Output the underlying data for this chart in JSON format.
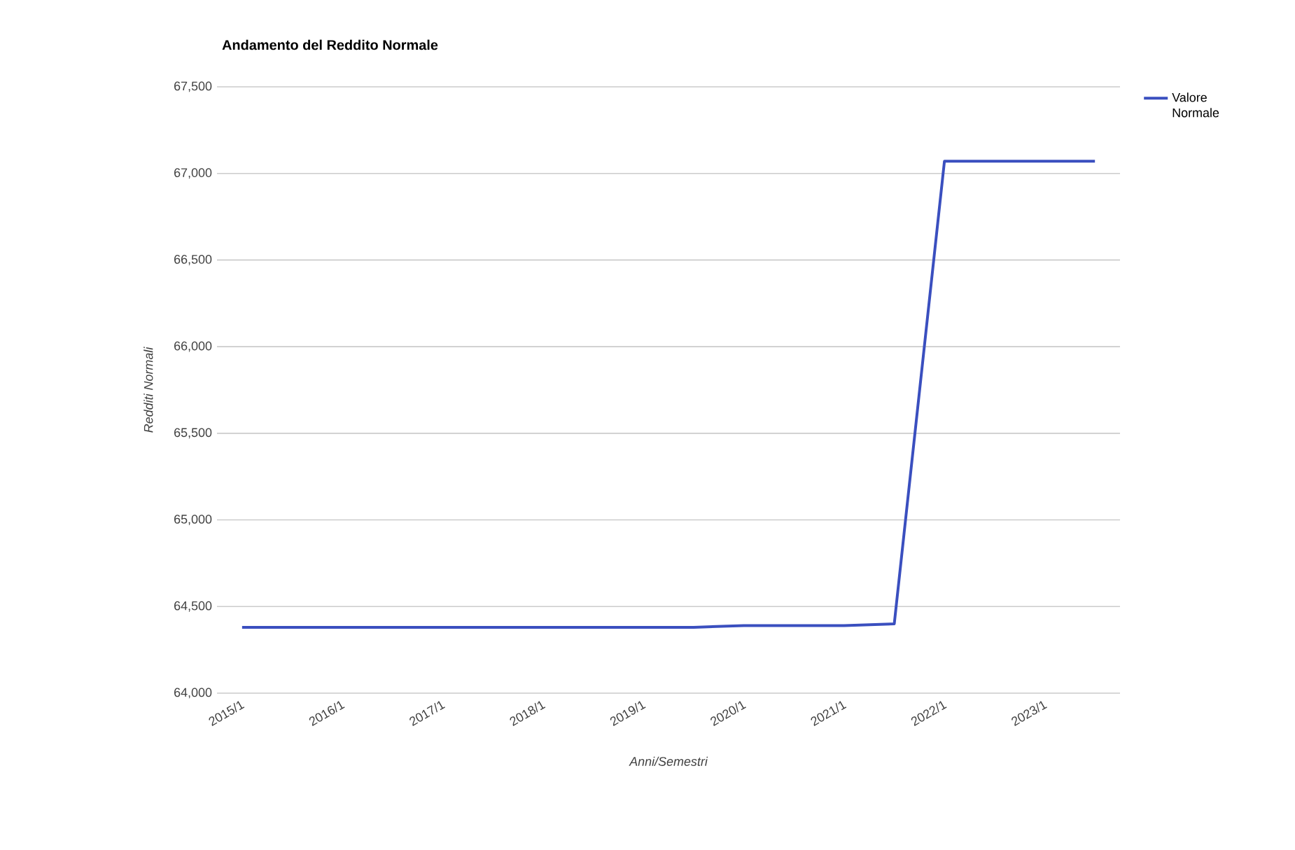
{
  "chart_data": {
    "type": "line",
    "title": "Andamento del Reddito Normale",
    "xlabel": "Anni/Semestri",
    "ylabel": "Redditi Normali",
    "categories": [
      "2015/1",
      null,
      "2016/1",
      null,
      "2017/1",
      null,
      "2018/1",
      null,
      "2019/1",
      null,
      "2020/1",
      null,
      "2021/1",
      null,
      "2022/1",
      null,
      "2023/1",
      null
    ],
    "series": [
      {
        "name": "Valore Normale",
        "color": "#3a4fbf",
        "values": [
          64380,
          64380,
          64380,
          64380,
          64380,
          64380,
          64380,
          64380,
          64380,
          64380,
          64390,
          64390,
          64390,
          64400,
          67070,
          67070,
          67070,
          67070
        ]
      }
    ],
    "ylim": [
      64000,
      67500
    ],
    "yticks": [
      {
        "value": 64000,
        "label": "64,000"
      },
      {
        "value": 64500,
        "label": "64,500"
      },
      {
        "value": 65000,
        "label": "65,000"
      },
      {
        "value": 65500,
        "label": "65,500"
      },
      {
        "value": 66000,
        "label": "66,000"
      },
      {
        "value": 66500,
        "label": "66,500"
      },
      {
        "value": 67000,
        "label": "67,000"
      },
      {
        "value": 67500,
        "label": "67,500"
      }
    ],
    "grid": "y",
    "legend": "top right",
    "marker": "none",
    "line_style": "solid"
  }
}
